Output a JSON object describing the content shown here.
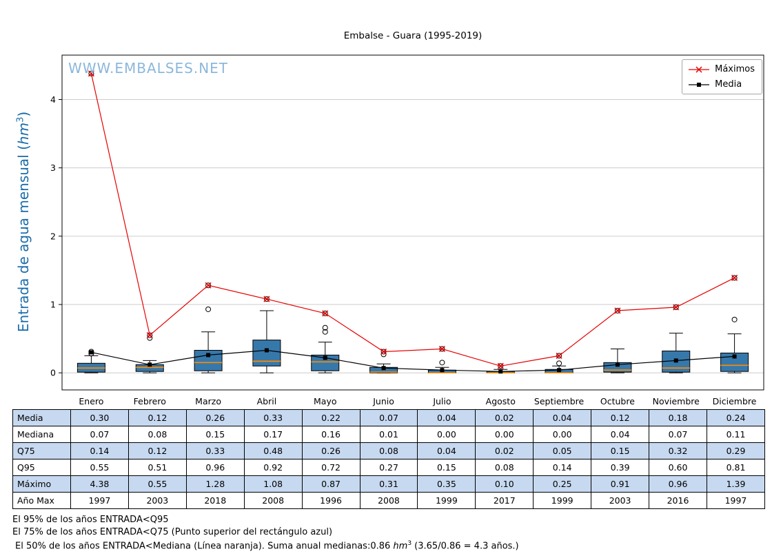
{
  "title": "Embalse - Guara (1995-2019)",
  "watermark": "WWW.EMBALSES.NET",
  "y_axis": {
    "label_prefix": "Entrada de agua mensual (",
    "unit": "hm",
    "exponent": "3",
    "label_suffix": ")"
  },
  "legend": [
    {
      "label": "Máximos"
    },
    {
      "label": "Media"
    }
  ],
  "table": {
    "rows": [
      {
        "label": "Media",
        "values": [
          "0.30",
          "0.12",
          "0.26",
          "0.33",
          "0.22",
          "0.07",
          "0.04",
          "0.02",
          "0.04",
          "0.12",
          "0.18",
          "0.24"
        ]
      },
      {
        "label": "Mediana",
        "values": [
          "0.07",
          "0.08",
          "0.15",
          "0.17",
          "0.16",
          "0.01",
          "0.00",
          "0.00",
          "0.00",
          "0.04",
          "0.07",
          "0.11"
        ]
      },
      {
        "label": "Q75",
        "values": [
          "0.14",
          "0.12",
          "0.33",
          "0.48",
          "0.26",
          "0.08",
          "0.04",
          "0.02",
          "0.05",
          "0.15",
          "0.32",
          "0.29"
        ]
      },
      {
        "label": "Q95",
        "values": [
          "0.55",
          "0.51",
          "0.96",
          "0.92",
          "0.72",
          "0.27",
          "0.15",
          "0.08",
          "0.14",
          "0.39",
          "0.60",
          "0.81"
        ]
      },
      {
        "label": "Máximo",
        "values": [
          "4.38",
          "0.55",
          "1.28",
          "1.08",
          "0.87",
          "0.31",
          "0.35",
          "0.10",
          "0.25",
          "0.91",
          "0.96",
          "1.39"
        ]
      },
      {
        "label": "Año Max",
        "values": [
          "1997",
          "2003",
          "2018",
          "2008",
          "1996",
          "2008",
          "1999",
          "2017",
          "1999",
          "2003",
          "2016",
          "1997"
        ]
      }
    ]
  },
  "footnotes": {
    "line1": "El 95% de los años ENTRADA<Q95",
    "line2": "El 75% de los años ENTRADA<Q75 (Punto superior del rectángulo azul)",
    "line3_prefix": "El 50% de los años ENTRADA<Mediana (Línea naranja). Suma anual medianas:0.86 ",
    "line3_unit": "hm",
    "line3_exponent": "3",
    "line3_suffix": " (3.65/0.86 = 4.3 años.)"
  },
  "chart_data": {
    "type": "boxplot",
    "title": "Embalse - Guara (1995-2019)",
    "xlabel": "",
    "ylabel": "Entrada de agua mensual (hm³)",
    "ylim": [
      -0.25,
      4.65
    ],
    "yticks": [
      0,
      1,
      2,
      3,
      4
    ],
    "grid": true,
    "legend_position": "upper right",
    "categories": [
      "Enero",
      "Febrero",
      "Marzo",
      "Abril",
      "Mayo",
      "Junio",
      "Julio",
      "Agosto",
      "Septiembre",
      "Octubre",
      "Noviembre",
      "Diciembre"
    ],
    "colors": {
      "box_fill": "#3778ab",
      "box_edge": "#000000",
      "median": "#ff8c00",
      "maximos": "#e60000",
      "media": "#000000",
      "grid": "#cccccc",
      "table_alt_row": "#c7d9f0",
      "ylabel_blue": "#1a6caa",
      "watermark_blue": "#7fb0d8"
    },
    "series": [
      {
        "name": "Máximos",
        "marker": "x",
        "color": "#e60000",
        "values": [
          4.38,
          0.55,
          1.28,
          1.08,
          0.87,
          0.31,
          0.35,
          0.1,
          0.25,
          0.91,
          0.96,
          1.39
        ]
      },
      {
        "name": "Media",
        "marker": "square",
        "color": "#000000",
        "values": [
          0.3,
          0.12,
          0.26,
          0.33,
          0.22,
          0.07,
          0.04,
          0.02,
          0.04,
          0.12,
          0.18,
          0.24
        ]
      }
    ],
    "boxplots": [
      {
        "month": "Enero",
        "whisker_low": 0.0,
        "q1": 0.01,
        "median": 0.07,
        "q3": 0.14,
        "whisker_high": 0.25,
        "outliers": [
          0.28,
          0.31,
          4.38
        ]
      },
      {
        "month": "Febrero",
        "whisker_low": 0.0,
        "q1": 0.02,
        "median": 0.08,
        "q3": 0.12,
        "whisker_high": 0.18,
        "outliers": [
          0.51,
          0.55
        ]
      },
      {
        "month": "Marzo",
        "whisker_low": 0.0,
        "q1": 0.03,
        "median": 0.15,
        "q3": 0.33,
        "whisker_high": 0.6,
        "outliers": [
          0.93,
          1.28
        ]
      },
      {
        "month": "Abril",
        "whisker_low": 0.0,
        "q1": 0.1,
        "median": 0.17,
        "q3": 0.48,
        "whisker_high": 0.91,
        "outliers": [
          1.08
        ]
      },
      {
        "month": "Mayo",
        "whisker_low": 0.0,
        "q1": 0.03,
        "median": 0.16,
        "q3": 0.26,
        "whisker_high": 0.45,
        "outliers": [
          0.6,
          0.66,
          0.87
        ]
      },
      {
        "month": "Junio",
        "whisker_low": 0.0,
        "q1": 0.0,
        "median": 0.01,
        "q3": 0.08,
        "whisker_high": 0.13,
        "outliers": [
          0.27,
          0.31
        ]
      },
      {
        "month": "Julio",
        "whisker_low": 0.0,
        "q1": 0.0,
        "median": 0.0,
        "q3": 0.04,
        "whisker_high": 0.08,
        "outliers": [
          0.15,
          0.35
        ]
      },
      {
        "month": "Agosto",
        "whisker_low": 0.0,
        "q1": 0.0,
        "median": 0.0,
        "q3": 0.02,
        "whisker_high": 0.05,
        "outliers": [
          0.1
        ]
      },
      {
        "month": "Septiembre",
        "whisker_low": 0.0,
        "q1": 0.0,
        "median": 0.0,
        "q3": 0.05,
        "whisker_high": 0.1,
        "outliers": [
          0.14,
          0.25
        ]
      },
      {
        "month": "Octubre",
        "whisker_low": 0.0,
        "q1": 0.01,
        "median": 0.04,
        "q3": 0.15,
        "whisker_high": 0.35,
        "outliers": [
          0.91
        ]
      },
      {
        "month": "Noviembre",
        "whisker_low": 0.0,
        "q1": 0.01,
        "median": 0.07,
        "q3": 0.32,
        "whisker_high": 0.58,
        "outliers": [
          0.96
        ]
      },
      {
        "month": "Diciembre",
        "whisker_low": 0.0,
        "q1": 0.02,
        "median": 0.11,
        "q3": 0.29,
        "whisker_high": 0.57,
        "outliers": [
          0.78,
          1.39
        ]
      }
    ]
  }
}
